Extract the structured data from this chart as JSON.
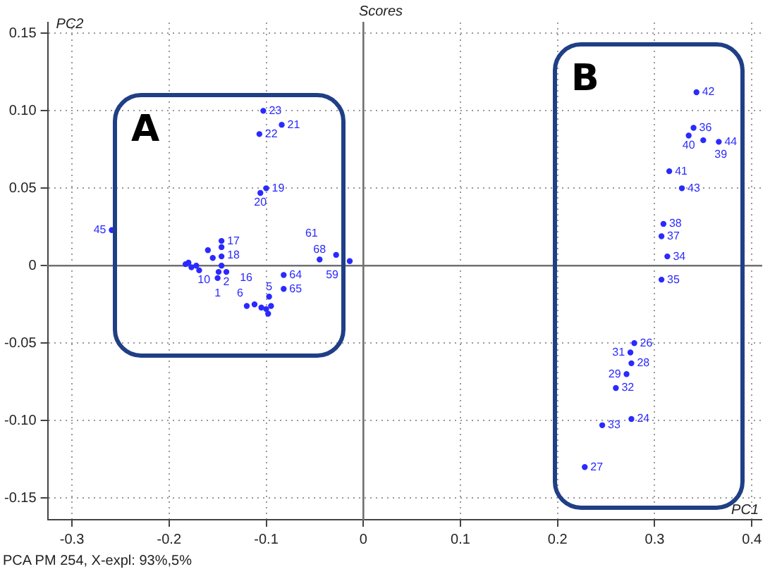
{
  "chart_data": {
    "type": "scatter",
    "title": "Scores",
    "xlabel": "PC1",
    "ylabel": "PC2",
    "annotations": [
      "A",
      "B",
      "PCA PM 254, X-expl: 93%,5%",
      {
        "text": "45",
        "x": -0.259,
        "y": 0.023
      },
      {
        "text": "23",
        "x": -0.103,
        "y": 0.1
      },
      {
        "text": "21",
        "x": -0.084,
        "y": 0.091
      },
      {
        "text": "22",
        "x": -0.107,
        "y": 0.085
      },
      {
        "text": "19",
        "x": -0.1,
        "y": 0.05
      },
      {
        "text": "20",
        "x": -0.106,
        "y": 0.047
      },
      {
        "text": "17",
        "x": -0.146,
        "y": 0.016
      },
      {
        "text": "18",
        "x": -0.146,
        "y": 0.012
      },
      {
        "text": "16",
        "x": -0.146,
        "y": 0.006
      },
      {
        "text": "10",
        "x": -0.146,
        "y": 0.0
      },
      {
        "text": "2",
        "x": -0.141,
        "y": -0.004
      },
      {
        "text": "1",
        "x": -0.15,
        "y": -0.008
      },
      {
        "text": "6",
        "x": -0.149,
        "y": -0.004
      },
      {
        "text": "64",
        "x": -0.082,
        "y": -0.006
      },
      {
        "text": "65",
        "x": -0.082,
        "y": -0.015
      },
      {
        "text": "5",
        "x": -0.097,
        "y": -0.02
      },
      {
        "text": "68",
        "x": -0.045,
        "y": 0.004
      },
      {
        "text": "61",
        "x": -0.028,
        "y": 0.007
      },
      {
        "text": "59",
        "x": -0.014,
        "y": 0.003
      },
      {
        "text": "42",
        "x": 0.343,
        "y": 0.112
      },
      {
        "text": "36",
        "x": 0.34,
        "y": 0.089
      },
      {
        "text": "40",
        "x": 0.335,
        "y": 0.084
      },
      {
        "text": "39",
        "x": 0.35,
        "y": 0.081
      },
      {
        "text": "44",
        "x": 0.366,
        "y": 0.08
      },
      {
        "text": "41",
        "x": 0.315,
        "y": 0.061
      },
      {
        "text": "43",
        "x": 0.328,
        "y": 0.05
      },
      {
        "text": "38",
        "x": 0.309,
        "y": 0.027
      },
      {
        "text": "37",
        "x": 0.307,
        "y": 0.019
      },
      {
        "text": "34",
        "x": 0.313,
        "y": 0.006
      },
      {
        "text": "35",
        "x": 0.307,
        "y": -0.009
      },
      {
        "text": "26",
        "x": 0.279,
        "y": -0.05
      },
      {
        "text": "31",
        "x": 0.275,
        "y": -0.056
      },
      {
        "text": "28",
        "x": 0.276,
        "y": -0.063
      },
      {
        "text": "29",
        "x": 0.271,
        "y": -0.07
      },
      {
        "text": "32",
        "x": 0.26,
        "y": -0.079
      },
      {
        "text": "24",
        "x": 0.276,
        "y": -0.099
      },
      {
        "text": "33",
        "x": 0.246,
        "y": -0.103
      },
      {
        "text": "27",
        "x": 0.228,
        "y": -0.13
      }
    ],
    "x": [
      -0.259,
      -0.103,
      -0.084,
      -0.107,
      -0.1,
      -0.106,
      -0.183,
      -0.18,
      -0.177,
      -0.172,
      -0.169,
      -0.16,
      -0.155,
      -0.146,
      -0.146,
      -0.146,
      -0.146,
      -0.141,
      -0.15,
      -0.149,
      -0.082,
      -0.082,
      -0.097,
      -0.12,
      -0.112,
      -0.105,
      -0.1,
      -0.095,
      -0.098,
      -0.045,
      -0.028,
      -0.014,
      0.343,
      0.34,
      0.335,
      0.35,
      0.366,
      0.315,
      0.328,
      0.309,
      0.307,
      0.313,
      0.307,
      0.279,
      0.275,
      0.276,
      0.271,
      0.26,
      0.276,
      0.246,
      0.228
    ],
    "values": [
      0.023,
      0.1,
      0.091,
      0.085,
      0.05,
      0.047,
      0.001,
      0.002,
      -0.001,
      0.0,
      -0.003,
      0.01,
      0.005,
      0.016,
      0.012,
      0.006,
      0.0,
      -0.004,
      -0.008,
      -0.004,
      -0.006,
      -0.015,
      -0.02,
      -0.026,
      -0.025,
      -0.027,
      -0.028,
      -0.026,
      -0.031,
      0.004,
      0.007,
      0.003,
      0.112,
      0.089,
      0.084,
      0.081,
      0.08,
      0.061,
      0.05,
      0.027,
      0.019,
      0.006,
      -0.009,
      -0.05,
      -0.056,
      -0.063,
      -0.07,
      -0.079,
      -0.099,
      -0.103,
      -0.13
    ],
    "color": "#2a2aff",
    "marker": "circle",
    "xlim": [
      -0.325,
      0.41
    ],
    "ylim": [
      -0.164,
      0.157
    ],
    "xticks": [
      -0.3,
      -0.2,
      -0.1,
      0,
      0.1,
      0.2,
      0.3,
      0.4
    ],
    "yticks": [
      -0.15,
      {
        "value": -0.1,
        "label": "-0.10"
      },
      -0.05,
      0,
      0.05,
      {
        "value": 0.1,
        "label": "0.10"
      },
      0.15
    ],
    "grid": true,
    "legend": false
  }
}
